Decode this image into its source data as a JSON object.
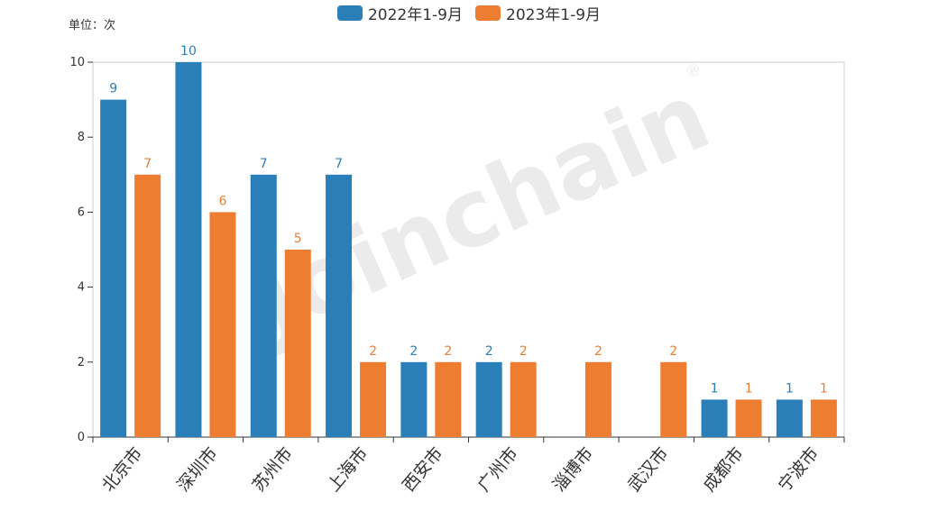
{
  "chart_data": {
    "type": "bar",
    "unit_label": "单位：次",
    "categories": [
      "北京市",
      "深圳市",
      "苏州市",
      "上海市",
      "西安市",
      "广州市",
      "淄博市",
      "武汉市",
      "成都市",
      "宁波市"
    ],
    "series": [
      {
        "name": "2022年1-9月",
        "color": "#2b7fb8",
        "values": [
          9,
          10,
          7,
          7,
          2,
          2,
          null,
          null,
          1,
          1
        ]
      },
      {
        "name": "2023年1-9月",
        "color": "#ed7d31",
        "values": [
          7,
          6,
          5,
          2,
          2,
          2,
          2,
          2,
          1,
          1
        ]
      }
    ],
    "y_ticks": [
      "0",
      "2",
      "4",
      "6",
      "8",
      "10"
    ],
    "ylim": [
      0,
      10
    ],
    "watermark": "Joinchain",
    "watermark_mark": "®"
  }
}
